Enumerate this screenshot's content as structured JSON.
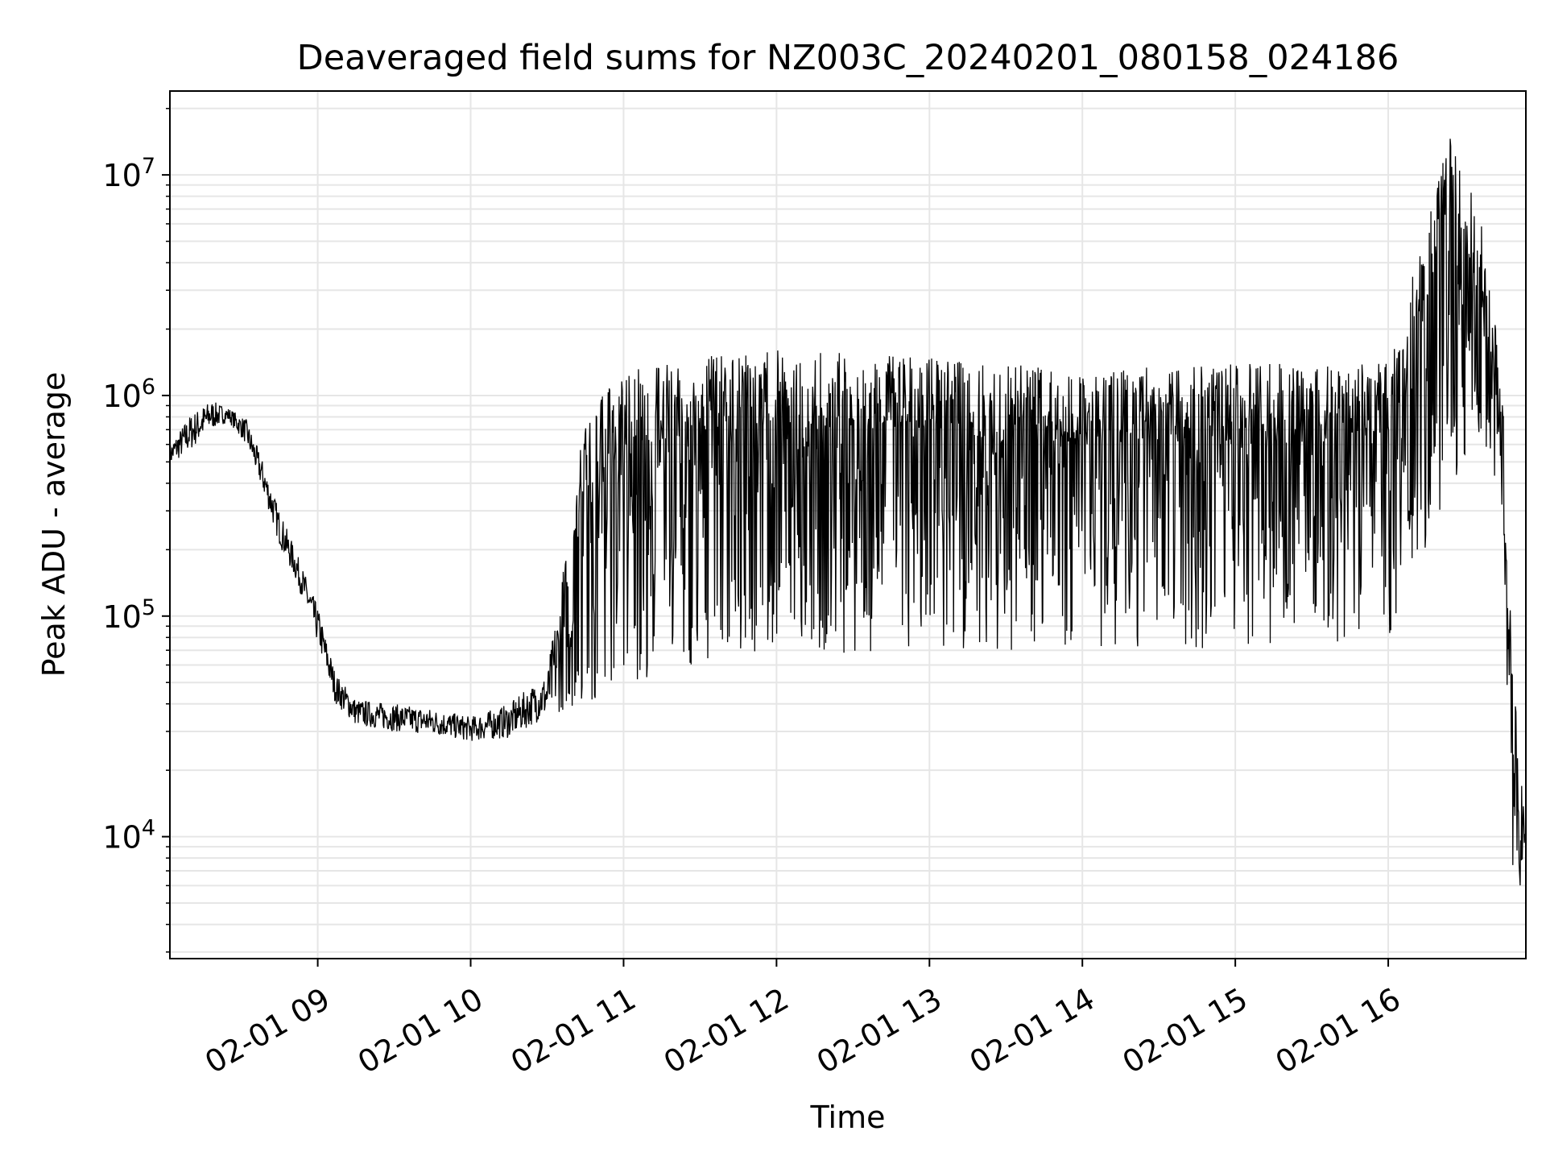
{
  "chart_data": {
    "type": "line",
    "title": "Deaveraged field sums for NZ003C_20240201_080158_024186",
    "xlabel": "Time",
    "ylabel": "Peak ADU - average",
    "yscale": "log",
    "xlim": [
      "2024-02-01 08:02",
      "2024-02-01 16:54"
    ],
    "ylim": [
      2800,
      24000000
    ],
    "grid": true,
    "line_color": "#000000",
    "grid_color": "#e6e6e6",
    "xticks": [
      {
        "value": "2024-02-01 09:00",
        "label": "02-01 09"
      },
      {
        "value": "2024-02-01 10:00",
        "label": "02-01 10"
      },
      {
        "value": "2024-02-01 11:00",
        "label": "02-01 11"
      },
      {
        "value": "2024-02-01 12:00",
        "label": "02-01 12"
      },
      {
        "value": "2024-02-01 13:00",
        "label": "02-01 13"
      },
      {
        "value": "2024-02-01 14:00",
        "label": "02-01 14"
      },
      {
        "value": "2024-02-01 15:00",
        "label": "02-01 15"
      },
      {
        "value": "2024-02-01 16:00",
        "label": "02-01 16"
      }
    ],
    "yticks": [
      {
        "value": 10000,
        "base": "10",
        "exp": "4"
      },
      {
        "value": 100000,
        "base": "10",
        "exp": "5"
      },
      {
        "value": 1000000,
        "base": "10",
        "exp": "6"
      },
      {
        "value": 10000000,
        "base": "10",
        "exp": "7"
      }
    ],
    "series": [
      {
        "description_points": "time, baseline (lower envelope) and upper envelope of the dense signal",
        "points": [
          {
            "x": "2024-02-01 08:02",
            "low": 480000,
            "high": 600000
          },
          {
            "x": "2024-02-01 08:10",
            "low": 560000,
            "high": 820000
          },
          {
            "x": "2024-02-01 08:18",
            "low": 700000,
            "high": 950000
          },
          {
            "x": "2024-02-01 08:25",
            "low": 760000,
            "high": 880000
          },
          {
            "x": "2024-02-01 08:32",
            "low": 600000,
            "high": 780000
          },
          {
            "x": "2024-02-01 08:38",
            "low": 380000,
            "high": 520000
          },
          {
            "x": "2024-02-01 08:45",
            "low": 210000,
            "high": 300000
          },
          {
            "x": "2024-02-01 08:52",
            "low": 140000,
            "high": 190000
          },
          {
            "x": "2024-02-01 09:00",
            "low": 75000,
            "high": 110000
          },
          {
            "x": "2024-02-01 09:07",
            "low": 40000,
            "high": 55000
          },
          {
            "x": "2024-02-01 09:15",
            "low": 32000,
            "high": 42000
          },
          {
            "x": "2024-02-01 09:30",
            "low": 30000,
            "high": 40000
          },
          {
            "x": "2024-02-01 09:45",
            "low": 29000,
            "high": 38000
          },
          {
            "x": "2024-02-01 10:00",
            "low": 27000,
            "high": 35000
          },
          {
            "x": "2024-02-01 10:15",
            "low": 28000,
            "high": 40000
          },
          {
            "x": "2024-02-01 10:30",
            "low": 35000,
            "high": 55000
          },
          {
            "x": "2024-02-01 10:45",
            "low": 40000,
            "high": 800000
          },
          {
            "x": "2024-02-01 11:00",
            "low": 50000,
            "high": 1300000
          },
          {
            "x": "2024-02-01 11:30",
            "low": 60000,
            "high": 1500000
          },
          {
            "x": "2024-02-01 12:00",
            "low": 65000,
            "high": 1600000
          },
          {
            "x": "2024-02-01 13:00",
            "low": 70000,
            "high": 1500000
          },
          {
            "x": "2024-02-01 14:00",
            "low": 70000,
            "high": 1300000
          },
          {
            "x": "2024-02-01 15:00",
            "low": 70000,
            "high": 1400000
          },
          {
            "x": "2024-02-01 16:00",
            "low": 80000,
            "high": 1400000
          },
          {
            "x": "2024-02-01 16:25",
            "low": 400000,
            "high": 16000000
          },
          {
            "x": "2024-02-01 16:38",
            "low": 600000,
            "high": 5500000
          },
          {
            "x": "2024-02-01 16:45",
            "low": 300000,
            "high": 1000000
          },
          {
            "x": "2024-02-01 16:48",
            "low": 8000,
            "high": 100000
          },
          {
            "x": "2024-02-01 16:51",
            "low": 5000,
            "high": 25000
          },
          {
            "x": "2024-02-01 16:54",
            "low": 8000,
            "high": 11000
          }
        ]
      }
    ]
  }
}
